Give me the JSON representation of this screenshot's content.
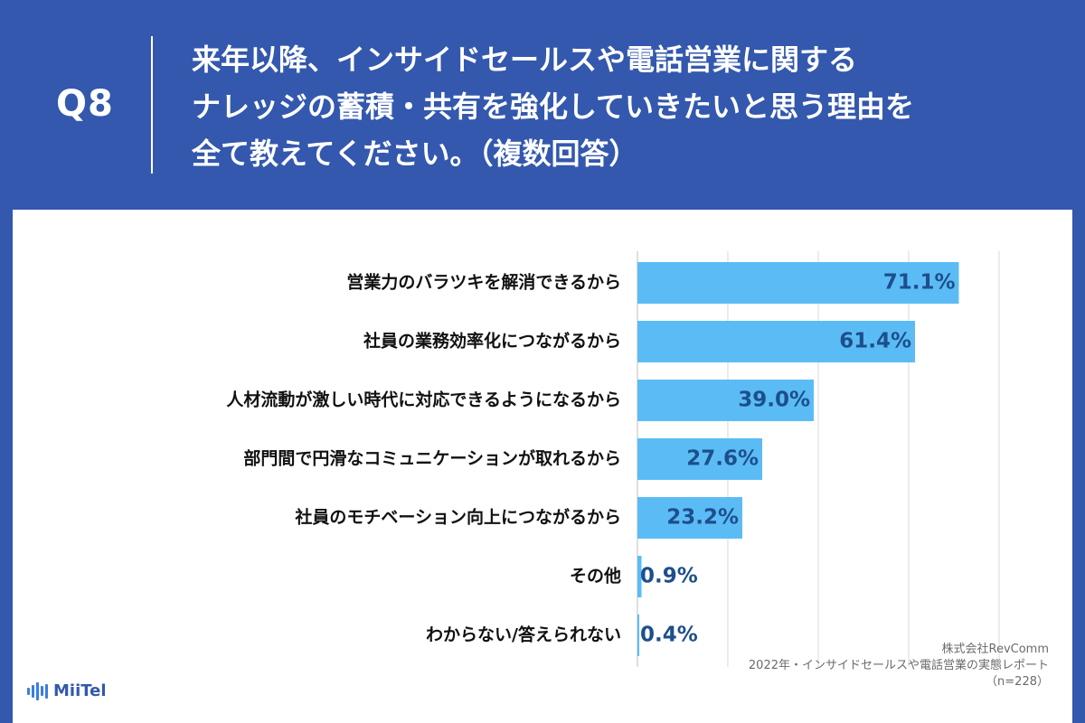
{
  "header": {
    "question_number": "Q8",
    "title_lines": [
      "来年以降、インサイドセールスや電話営業に関する",
      "ナレッジの蓄積・共有を強化していきたいと思う理由を",
      "全て教えてください。（複数回答）"
    ]
  },
  "colors": {
    "background": "#3358ad",
    "bar": "#5bbcf5",
    "value_text": "#1d4f8c",
    "label_text": "#111111",
    "gridline": "#d9d9d9"
  },
  "chart_data": {
    "type": "bar",
    "orientation": "horizontal",
    "categories": [
      "営業力のバラツキを解消できるから",
      "社員の業務効率化につながるから",
      "人材流動が激しい時代に対応できるようになるから",
      "部門間で円滑なコミュニケーションが取れるから",
      "社員のモチベーション向上につながるから",
      "その他",
      "わからない/答えられない"
    ],
    "values": [
      71.1,
      61.4,
      39.0,
      27.6,
      23.2,
      0.9,
      0.4
    ],
    "value_labels": [
      "71.1%",
      "61.4%",
      "39.0%",
      "27.6%",
      "23.2%",
      "0.9%",
      "0.4%"
    ],
    "xlim": [
      0,
      100
    ],
    "grid": true
  },
  "source": {
    "company": "株式会社RevComm",
    "report": "2022年・インサイドセールスや電話営業の実態レポート",
    "sample": "（n=228）"
  },
  "logo": {
    "text": "MiiTel",
    "icon": "soundwave-icon"
  }
}
